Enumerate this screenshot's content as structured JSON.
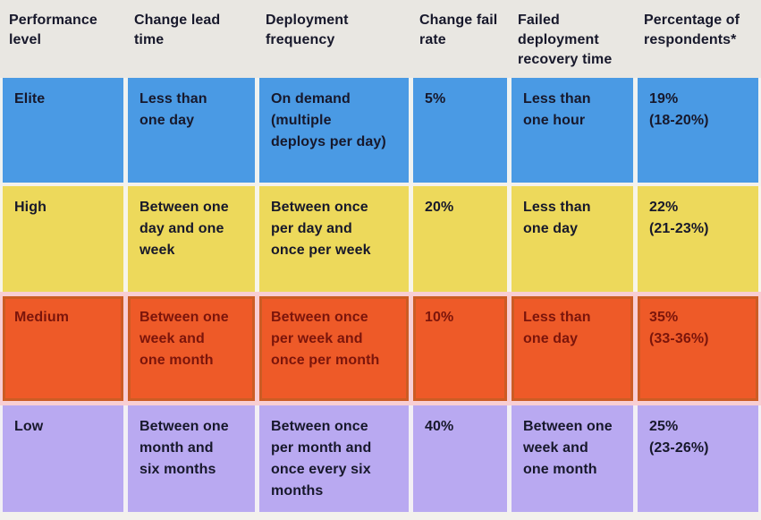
{
  "table": {
    "header": [
      "Performance\nlevel",
      "Change lead\ntime",
      "Deployment\nfrequency",
      "Change fail\nrate",
      "Failed\ndeployment\nrecovery time",
      "Percentage of\nrespondents*"
    ],
    "rows": [
      {
        "id": "elite",
        "cells": [
          "Elite",
          "Less than\none day",
          "On demand\n(multiple\ndeploys per day)",
          "5%",
          "Less than\none hour",
          "19%\n(18-20%)"
        ]
      },
      {
        "id": "high",
        "cells": [
          "High",
          "Between one\nday and one\nweek",
          "Between once\nper day and\nonce per week",
          "20%",
          "Less than\none day",
          "22%\n(21-23%)"
        ]
      },
      {
        "id": "medium",
        "cells": [
          "Medium",
          "Between one\nweek and\none month",
          "Between once\nper week and\nonce per month",
          "10%",
          "Less than\none day",
          "35%\n(33-36%)"
        ]
      },
      {
        "id": "low",
        "cells": [
          "Low",
          "Between one\nmonth and\nsix months",
          "Between once\nper month and\nonce every six\nmonths",
          "40%",
          "Between one\nweek and\none month",
          "25%\n(23-26%)"
        ]
      }
    ]
  },
  "colors": {
    "page_bg": "#f3f1ec",
    "header_bg": "#e9e7e2",
    "text_dark": "#17182b",
    "text_medium_row": "#7b150b",
    "row_elite": "#4a9ae4",
    "row_high": "#edd95b",
    "row_medium": "#ee5a28",
    "row_low": "#b9a9f1",
    "gap_elite": "#eef2f1",
    "gap_high": "#f7f5e9",
    "gap_medium": "#f8ced3",
    "gap_low": "#f2eff5"
  },
  "chart_data": {
    "type": "table",
    "columns": [
      "Performance level",
      "Change lead time",
      "Deployment frequency",
      "Change fail rate",
      "Failed deployment recovery time",
      "Percentage of respondents*"
    ],
    "rows": [
      [
        "Elite",
        "Less than one day",
        "On demand (multiple deploys per day)",
        "5%",
        "Less than one hour",
        "19% (18-20%)"
      ],
      [
        "High",
        "Between one day and one week",
        "Between once per day and once per week",
        "20%",
        "Less than one day",
        "22% (21-23%)"
      ],
      [
        "Medium",
        "Between one week and one month",
        "Between once per week and once per month",
        "10%",
        "Less than one day",
        "35% (33-36%)"
      ],
      [
        "Low",
        "Between one month and six months",
        "Between once per month and once every six months",
        "40%",
        "Between one week and one month",
        "25% (23-26%)"
      ]
    ],
    "row_colors": {
      "Elite": "#4a9ae4",
      "High": "#edd95b",
      "Medium": "#ee5a28",
      "Low": "#b9a9f1"
    }
  }
}
